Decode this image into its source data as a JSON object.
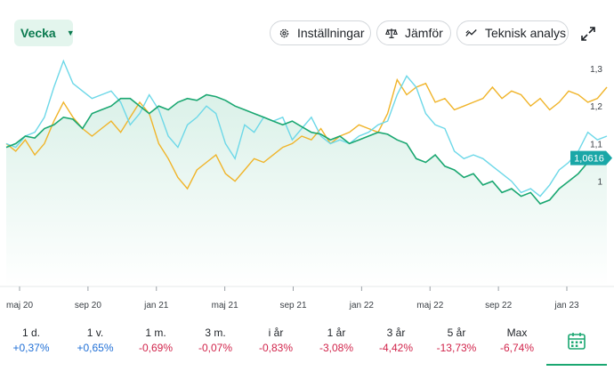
{
  "toolbar": {
    "period": "Vecka",
    "settings_label": "Inställningar",
    "compare_label": "Jämför",
    "technical_label": "Teknisk analys"
  },
  "chart_data": {
    "type": "line",
    "x_labels": [
      "maj 20",
      "sep 20",
      "jan 21",
      "maj 21",
      "sep 21",
      "jan 22",
      "maj 22",
      "sep 22",
      "jan 23"
    ],
    "y_ticks": [
      "1,3",
      "1,2",
      "1,1",
      "1"
    ],
    "ylim": [
      0.72,
      1.34
    ],
    "current_label": "1,0616",
    "colors": {
      "main": "#1aa771",
      "compare1": "#6dd8e8",
      "compare2": "#f0b429",
      "badge": "#1aa7a7"
    },
    "series": [
      {
        "id": "main",
        "values": [
          1.09,
          1.1,
          1.12,
          1.115,
          1.14,
          1.15,
          1.17,
          1.165,
          1.14,
          1.18,
          1.19,
          1.2,
          1.22,
          1.22,
          1.2,
          1.18,
          1.2,
          1.19,
          1.21,
          1.22,
          1.215,
          1.23,
          1.225,
          1.215,
          1.2,
          1.19,
          1.18,
          1.17,
          1.16,
          1.15,
          1.16,
          1.145,
          1.13,
          1.125,
          1.11,
          1.12,
          1.1,
          1.11,
          1.12,
          1.13,
          1.125,
          1.11,
          1.1,
          1.06,
          1.05,
          1.07,
          1.04,
          1.03,
          1.01,
          1.02,
          0.99,
          1.0,
          0.97,
          0.98,
          0.96,
          0.97,
          0.94,
          0.95,
          0.98,
          1.0,
          1.02,
          1.05,
          1.06,
          1.0616
        ]
      },
      {
        "id": "compare1",
        "values": [
          1.1,
          1.09,
          1.12,
          1.13,
          1.17,
          1.25,
          1.32,
          1.26,
          1.24,
          1.22,
          1.23,
          1.24,
          1.21,
          1.15,
          1.18,
          1.23,
          1.19,
          1.12,
          1.09,
          1.15,
          1.17,
          1.2,
          1.18,
          1.1,
          1.06,
          1.15,
          1.13,
          1.17,
          1.16,
          1.17,
          1.11,
          1.14,
          1.17,
          1.12,
          1.1,
          1.11,
          1.1,
          1.12,
          1.13,
          1.15,
          1.16,
          1.23,
          1.28,
          1.25,
          1.18,
          1.15,
          1.14,
          1.08,
          1.06,
          1.07,
          1.06,
          1.04,
          1.02,
          1.0,
          0.97,
          0.98,
          0.96,
          0.99,
          1.03,
          1.05,
          1.08,
          1.13,
          1.11,
          1.12
        ]
      },
      {
        "id": "compare2",
        "values": [
          1.1,
          1.08,
          1.11,
          1.07,
          1.1,
          1.16,
          1.21,
          1.17,
          1.14,
          1.12,
          1.14,
          1.16,
          1.13,
          1.17,
          1.21,
          1.18,
          1.1,
          1.06,
          1.01,
          0.98,
          1.03,
          1.05,
          1.07,
          1.02,
          1.0,
          1.03,
          1.06,
          1.05,
          1.07,
          1.09,
          1.1,
          1.12,
          1.11,
          1.14,
          1.1,
          1.12,
          1.13,
          1.15,
          1.14,
          1.13,
          1.18,
          1.27,
          1.23,
          1.25,
          1.26,
          1.21,
          1.22,
          1.19,
          1.2,
          1.21,
          1.22,
          1.25,
          1.22,
          1.24,
          1.23,
          1.2,
          1.22,
          1.19,
          1.21,
          1.24,
          1.23,
          1.21,
          1.22,
          1.25
        ]
      }
    ]
  },
  "stats": [
    {
      "label": "1 d.",
      "value": "+0,37%",
      "sign": "pos"
    },
    {
      "label": "1 v.",
      "value": "+0,65%",
      "sign": "pos"
    },
    {
      "label": "1 m.",
      "value": "-0,69%",
      "sign": "neg"
    },
    {
      "label": "3 m.",
      "value": "-0,07%",
      "sign": "neg"
    },
    {
      "label": "i år",
      "value": "-0,83%",
      "sign": "neg"
    },
    {
      "label": "1 år",
      "value": "-3,08%",
      "sign": "neg"
    },
    {
      "label": "3 år",
      "value": "-4,42%",
      "sign": "neg"
    },
    {
      "label": "5 år",
      "value": "-13,73%",
      "sign": "neg"
    },
    {
      "label": "Max",
      "value": "-6,74%",
      "sign": "neg"
    }
  ]
}
